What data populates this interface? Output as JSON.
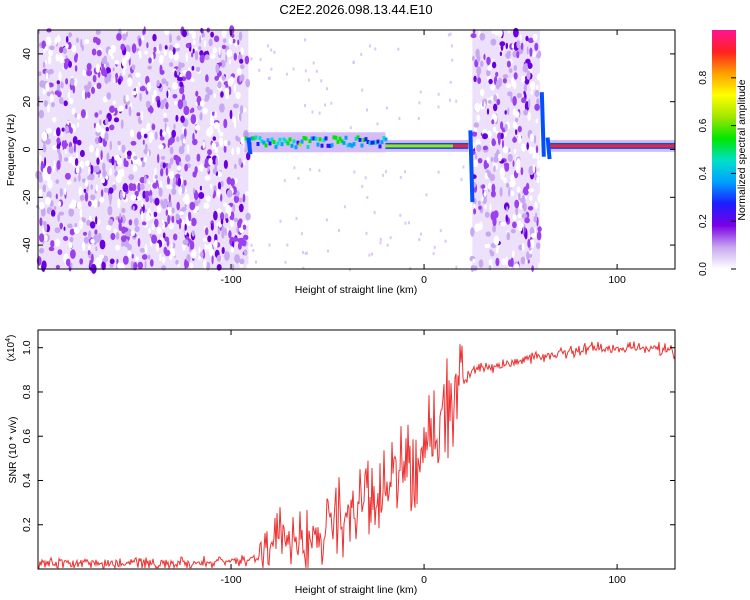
{
  "title": "C2E2.2026.098.13.44.E10",
  "chart_data": [
    {
      "type": "heatmap",
      "name": "spectrogram",
      "xlabel": "Height of straight line (km)",
      "ylabel": "Frequency (Hz)",
      "xlim": [
        -200,
        130
      ],
      "ylim": [
        -50,
        50
      ],
      "x_ticks": [
        -100,
        0,
        100
      ],
      "x_tick_labels": [
        "-100",
        "0",
        "100"
      ],
      "y_ticks": [
        -40,
        -20,
        0,
        20,
        40
      ],
      "y_tick_labels": [
        "-40",
        "-20",
        "0",
        "20",
        "40"
      ],
      "noise_bands_km": [
        [
          -200,
          -91
        ],
        [
          25,
          60
        ]
      ],
      "carrier_segments": [
        {
          "x0": -93,
          "x1": -20,
          "freq": 3,
          "amplitude": 0.4
        },
        {
          "x0": -20,
          "x1": 15,
          "freq": 1.5,
          "amplitude": 0.6
        },
        {
          "x0": 15,
          "x1": 23,
          "freq": 1.5,
          "amplitude": 0.9
        },
        {
          "x0": 64,
          "x1": 130,
          "freq": 1.5,
          "amplitude": 0.95
        }
      ],
      "colorbar": {
        "label": "Normalized spectral amplitude",
        "range": [
          0,
          1
        ],
        "ticks": [
          0.0,
          0.2,
          0.4,
          0.6,
          0.8
        ],
        "tick_labels": [
          "0.0",
          "0.2",
          "0.4",
          "0.6",
          "0.8"
        ],
        "colors": [
          "#ffffff",
          "#c8a8f0",
          "#7a00e6",
          "#1c1cff",
          "#00a0ff",
          "#00e0c8",
          "#00e600",
          "#a0e600",
          "#ffff00",
          "#ffa000",
          "#ff2020",
          "#ff1493"
        ]
      }
    },
    {
      "type": "line",
      "name": "snr",
      "xlabel": "Height of straight line (km)",
      "ylabel": "SNR (10 * v/v)",
      "scale_label": "(x10",
      "scale_exp": "4",
      "scale_close": ")",
      "xlim": [
        -200,
        130
      ],
      "ylim": [
        0,
        1.08
      ],
      "x_ticks": [
        -100,
        0,
        100
      ],
      "x_tick_labels": [
        "-100",
        "0",
        "100"
      ],
      "y_ticks": [
        0.2,
        0.4,
        0.6,
        0.8,
        1.0
      ],
      "y_tick_labels": [
        "0.2",
        "0.4",
        "0.6",
        "0.8",
        "1.0"
      ],
      "color": "#ee3030",
      "series": [
        {
          "name": "SNR",
          "x": [
            -200,
            -160,
            -120,
            -95,
            -85,
            -80,
            -75,
            -70,
            -65,
            -60,
            -55,
            -50,
            -45,
            -40,
            -35,
            -30,
            -25,
            -20,
            -15,
            -10,
            -5,
            0,
            5,
            10,
            15,
            20,
            25,
            30,
            40,
            50,
            60,
            70,
            80,
            90,
            100,
            110,
            120,
            130
          ],
          "values": [
            0.03,
            0.025,
            0.03,
            0.035,
            0.06,
            0.1,
            0.15,
            0.14,
            0.16,
            0.12,
            0.14,
            0.18,
            0.25,
            0.22,
            0.28,
            0.3,
            0.26,
            0.35,
            0.42,
            0.45,
            0.5,
            0.55,
            0.6,
            0.68,
            0.76,
            0.84,
            0.89,
            0.91,
            0.92,
            0.95,
            0.96,
            0.97,
            0.99,
            1.0,
            0.99,
            1.0,
            1.0,
            0.98
          ]
        }
      ]
    }
  ]
}
